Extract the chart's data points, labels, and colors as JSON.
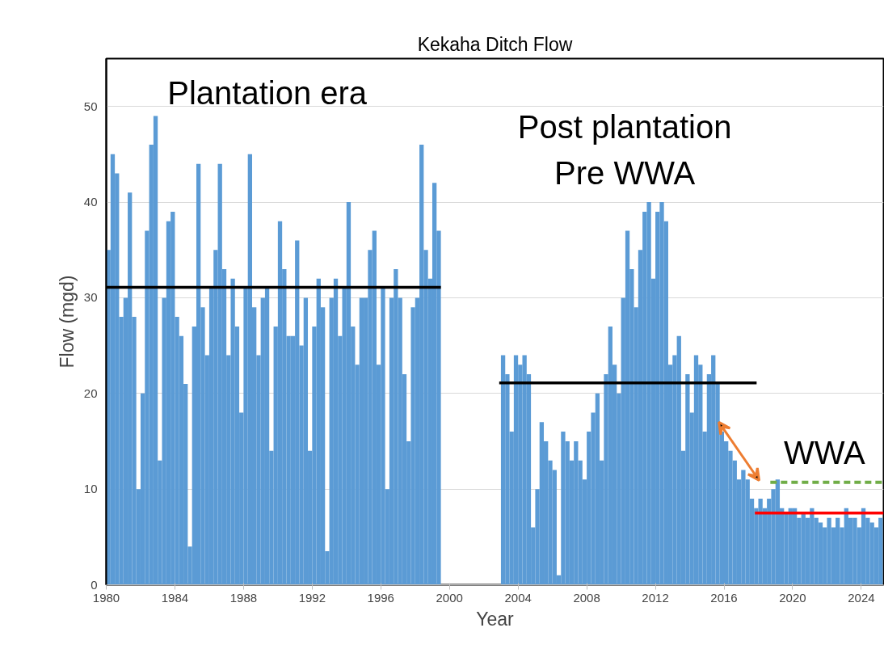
{
  "chart_data": {
    "type": "bar",
    "title": "Kekaha Ditch Flow",
    "xlabel": "Year",
    "ylabel": "Flow (mgd)",
    "xlim": [
      1980,
      2025.3
    ],
    "xticks": [
      1980,
      1984,
      1988,
      1992,
      1996,
      2000,
      2004,
      2008,
      2012,
      2016,
      2020,
      2024
    ],
    "ylim": [
      0,
      55
    ],
    "yticks": [
      0,
      10,
      20,
      30,
      40,
      50
    ],
    "grid": "y",
    "series": [
      {
        "color": "#5b9bd5",
        "x": [
          1980.125,
          1980.375,
          1980.625,
          1980.875,
          1981.125,
          1981.375,
          1981.625,
          1981.875,
          1982.125,
          1982.375,
          1982.625,
          1982.875,
          1983.125,
          1983.375,
          1983.625,
          1983.875,
          1984.125,
          1984.375,
          1984.625,
          1984.875,
          1985.125,
          1985.375,
          1985.625,
          1985.875,
          1986.125,
          1986.375,
          1986.625,
          1986.875,
          1987.125,
          1987.375,
          1987.625,
          1987.875,
          1988.125,
          1988.375,
          1988.625,
          1988.875,
          1989.125,
          1989.375,
          1989.625,
          1989.875,
          1990.125,
          1990.375,
          1990.625,
          1990.875,
          1991.125,
          1991.375,
          1991.625,
          1991.875,
          1992.125,
          1992.375,
          1992.625,
          1992.875,
          1993.125,
          1993.375,
          1993.625,
          1993.875,
          1994.125,
          1994.375,
          1994.625,
          1994.875,
          1995.125,
          1995.375,
          1995.625,
          1995.875,
          1996.125,
          1996.375,
          1996.625,
          1996.875,
          1997.125,
          1997.375,
          1997.625,
          1997.875,
          1998.125,
          1998.375,
          1998.625,
          1998.875,
          1999.125,
          1999.375,
          2003.125,
          2003.375,
          2003.625,
          2003.875,
          2004.125,
          2004.375,
          2004.625,
          2004.875,
          2005.125,
          2005.375,
          2005.625,
          2005.875,
          2006.125,
          2006.375,
          2006.625,
          2006.875,
          2007.125,
          2007.375,
          2007.625,
          2007.875,
          2008.125,
          2008.375,
          2008.625,
          2008.875,
          2009.125,
          2009.375,
          2009.625,
          2009.875,
          2010.125,
          2010.375,
          2010.625,
          2010.875,
          2011.125,
          2011.375,
          2011.625,
          2011.875,
          2012.125,
          2012.375,
          2012.625,
          2012.875,
          2013.125,
          2013.375,
          2013.625,
          2013.875,
          2014.125,
          2014.375,
          2014.625,
          2014.875,
          2015.125,
          2015.375,
          2015.625,
          2015.875,
          2016.125,
          2016.375,
          2016.625,
          2016.875,
          2017.125,
          2017.375,
          2017.625,
          2017.875,
          2018.125,
          2018.375,
          2018.625,
          2018.875,
          2019.125,
          2019.375,
          2019.625,
          2019.875,
          2020.125,
          2020.375,
          2020.625,
          2020.875,
          2021.125,
          2021.375,
          2021.625,
          2021.875,
          2022.125,
          2022.375,
          2022.625,
          2022.875,
          2023.125,
          2023.375,
          2023.625,
          2023.875,
          2024.125,
          2024.375,
          2024.625,
          2024.875,
          2025.125
        ],
        "values": [
          35,
          45,
          43,
          28,
          30,
          41,
          28,
          10,
          20,
          37,
          46,
          49,
          13,
          30,
          38,
          39,
          28,
          26,
          21,
          4,
          27,
          44,
          29,
          24,
          31,
          35,
          44,
          33,
          24,
          32,
          27,
          18,
          31,
          45,
          29,
          24,
          30,
          31,
          14,
          27,
          38,
          33,
          26,
          26,
          36,
          25,
          30,
          14,
          27,
          32,
          29,
          3.5,
          30,
          32,
          26,
          31,
          40,
          27,
          23,
          30,
          30,
          35,
          37,
          23,
          31,
          10,
          30,
          33,
          30,
          22,
          15,
          29,
          30,
          46,
          35,
          32,
          42,
          37,
          24,
          22,
          16,
          24,
          23,
          24,
          22,
          6,
          10,
          17,
          15,
          13,
          12,
          1,
          16,
          15,
          13,
          15,
          13,
          11,
          16,
          18,
          20,
          13,
          22,
          27,
          23,
          20,
          30,
          37,
          33,
          29,
          35,
          39,
          40,
          32,
          39,
          40,
          38,
          23,
          24,
          26,
          14,
          22,
          18,
          24,
          23,
          16,
          22,
          24,
          21,
          16,
          15,
          14,
          13,
          11,
          12,
          11,
          9,
          8,
          9,
          8,
          9,
          10,
          11,
          8,
          7.5,
          8,
          8,
          7,
          7.5,
          7,
          8,
          7,
          6.5,
          6,
          7,
          6,
          7,
          6,
          8,
          7,
          7,
          6,
          8,
          7,
          6.5,
          6,
          7
        ]
      },
      {
        "type": "line",
        "color": "#000000",
        "x": [
          1980,
          1999.5
        ],
        "values": [
          31.1,
          31.1
        ]
      },
      {
        "type": "line",
        "color": "#000000",
        "x": [
          2002.9,
          2017.9
        ],
        "values": [
          21.1,
          21.1
        ]
      },
      {
        "type": "line",
        "color": "#ff0000",
        "x": [
          2017.8,
          2025.3
        ],
        "values": [
          7.5,
          7.5
        ]
      },
      {
        "type": "line",
        "color": "#70ad47",
        "line_style": "dashed",
        "x": [
          2018.7,
          2025.3
        ],
        "values": [
          10.7,
          10.7
        ]
      }
    ],
    "annotations": [
      "Plantation era",
      "Post plantation\nPre WWA",
      "WWA"
    ]
  }
}
